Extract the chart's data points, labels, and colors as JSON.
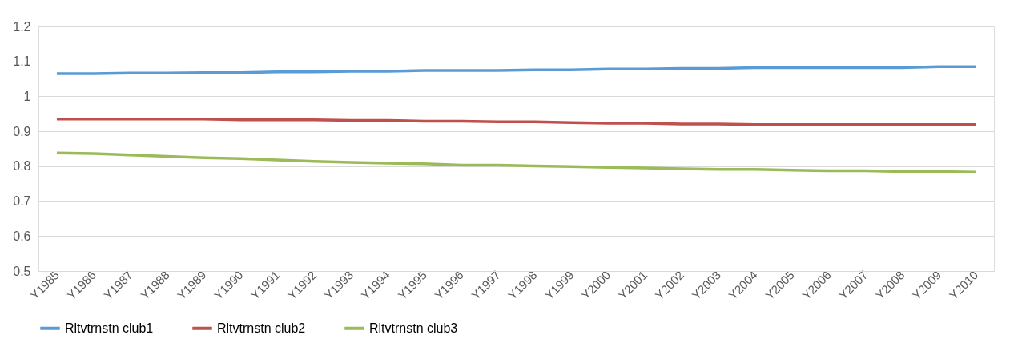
{
  "chart_data": {
    "type": "line",
    "categories": [
      "Y1985",
      "Y1986",
      "Y1987",
      "Y1988",
      "Y1989",
      "Y1990",
      "Y1991",
      "Y1992",
      "Y1993",
      "Y1994",
      "Y1995",
      "Y1996",
      "Y1997",
      "Y1998",
      "Y1999",
      "Y2000",
      "Y2001",
      "Y2002",
      "Y2003",
      "Y2004",
      "Y2005",
      "Y2006",
      "Y2007",
      "Y2008",
      "Y2009",
      "Y2010"
    ],
    "series": [
      {
        "name": "Rltvtrnstn club1",
        "color": "#5b9bd5",
        "values": [
          1.065,
          1.065,
          1.067,
          1.067,
          1.068,
          1.068,
          1.07,
          1.07,
          1.072,
          1.072,
          1.074,
          1.074,
          1.074,
          1.076,
          1.076,
          1.078,
          1.078,
          1.08,
          1.08,
          1.082,
          1.082,
          1.082,
          1.082,
          1.082,
          1.085,
          1.085
        ]
      },
      {
        "name": "Rltvtrnstn club2",
        "color": "#c0504d",
        "values": [
          0.935,
          0.935,
          0.935,
          0.935,
          0.935,
          0.933,
          0.933,
          0.933,
          0.931,
          0.931,
          0.929,
          0.929,
          0.927,
          0.927,
          0.925,
          0.923,
          0.923,
          0.921,
          0.921,
          0.919,
          0.919,
          0.919,
          0.919,
          0.919,
          0.919,
          0.919
        ]
      },
      {
        "name": "Rltvtrnstn club3",
        "color": "#9bbb59",
        "values": [
          0.838,
          0.836,
          0.832,
          0.828,
          0.824,
          0.822,
          0.818,
          0.814,
          0.811,
          0.809,
          0.807,
          0.803,
          0.803,
          0.801,
          0.799,
          0.797,
          0.795,
          0.793,
          0.791,
          0.791,
          0.789,
          0.787,
          0.787,
          0.785,
          0.785,
          0.783
        ]
      }
    ],
    "ylim": [
      0.5,
      1.2
    ],
    "yticks": [
      0.5,
      0.6,
      0.7,
      0.8,
      0.9,
      1,
      1.1,
      1.2
    ],
    "grid": "y",
    "legend": "bottom",
    "marker": "none",
    "line_style": "solid"
  }
}
